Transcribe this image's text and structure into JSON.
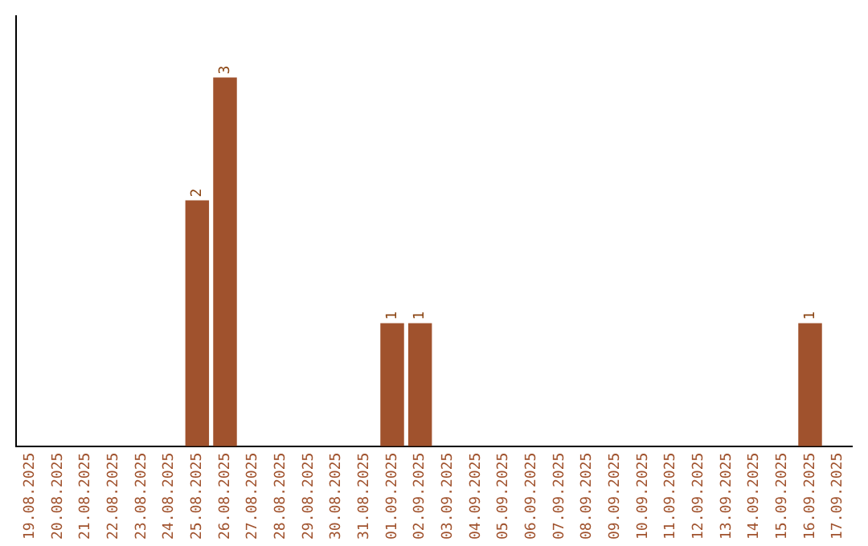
{
  "chart_data": {
    "type": "bar",
    "categories": [
      "19.08.2025",
      "20.08.2025",
      "21.08.2025",
      "22.08.2025",
      "23.08.2025",
      "24.08.2025",
      "25.08.2025",
      "26.08.2025",
      "27.08.2025",
      "28.08.2025",
      "29.08.2025",
      "30.08.2025",
      "31.08.2025",
      "01.09.2025",
      "02.09.2025",
      "03.09.2025",
      "04.09.2025",
      "05.09.2025",
      "06.09.2025",
      "07.09.2025",
      "08.09.2025",
      "09.09.2025",
      "10.09.2025",
      "11.09.2025",
      "12.09.2025",
      "13.09.2025",
      "14.09.2025",
      "15.09.2025",
      "16.09.2025",
      "17.09.2025"
    ],
    "values": [
      0,
      0,
      0,
      0,
      0,
      0,
      2,
      3,
      0,
      0,
      0,
      0,
      0,
      1,
      1,
      0,
      0,
      0,
      0,
      0,
      0,
      0,
      0,
      0,
      0,
      0,
      0,
      0,
      1,
      0
    ],
    "value_labels": [
      null,
      null,
      null,
      null,
      null,
      null,
      "2",
      "3",
      null,
      null,
      null,
      null,
      null,
      "1",
      "1",
      null,
      null,
      null,
      null,
      null,
      null,
      null,
      null,
      null,
      null,
      null,
      null,
      null,
      "1",
      null
    ],
    "color": "#a0522d",
    "grid": false,
    "legend": false,
    "tick_labels": "x"
  }
}
